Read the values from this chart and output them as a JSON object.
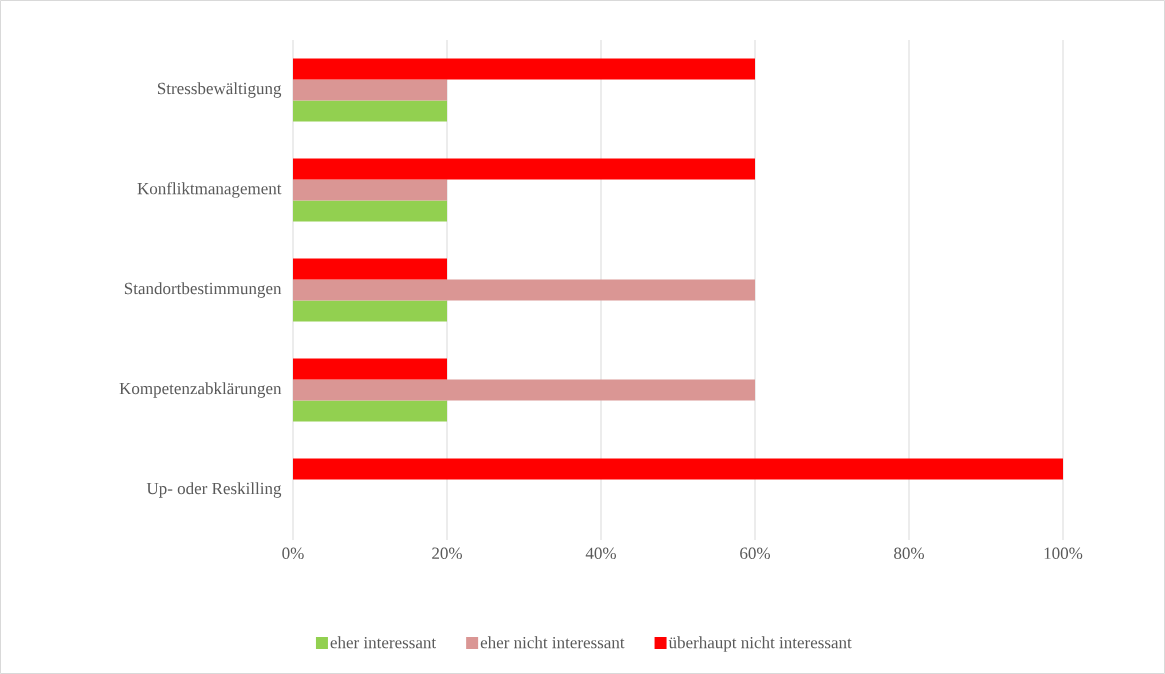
{
  "chart_data": {
    "type": "bar",
    "orientation": "horizontal",
    "categories": [
      "Stressbewältigung",
      "Konfliktmanagement",
      "Standortbestimmungen",
      "Kompetenzabklärungen",
      "Up- oder Reskilling"
    ],
    "series": [
      {
        "name": "eher interessant",
        "color": "#92d050",
        "values": [
          20,
          20,
          20,
          20,
          null
        ]
      },
      {
        "name": "eher nicht interessant",
        "color": "#da9694",
        "values": [
          20,
          20,
          60,
          60,
          null
        ]
      },
      {
        "name": "überhaupt nicht interessant",
        "color": "#ff0000",
        "values": [
          60,
          60,
          20,
          20,
          100
        ]
      }
    ],
    "xlim": [
      0,
      100
    ],
    "xticks": [
      {
        "value": 0,
        "label": "0%"
      },
      {
        "value": 20,
        "label": "20%"
      },
      {
        "value": 40,
        "label": "40%"
      },
      {
        "value": 60,
        "label": "60%"
      },
      {
        "value": 80,
        "label": "80%"
      },
      {
        "value": 100,
        "label": "100%"
      }
    ],
    "grid": "x",
    "legend": "bottom"
  }
}
